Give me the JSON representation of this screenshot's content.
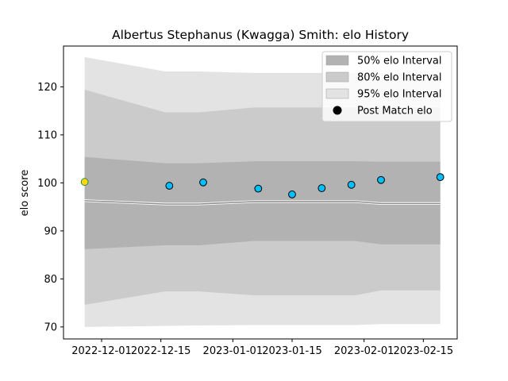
{
  "chart_data": {
    "type": "scatter",
    "title": "Albertus Stephanus (Kwagga) Smith: elo History",
    "xlabel": "",
    "ylabel": "elo score",
    "x_range": [
      "2022-11-22",
      "2023-02-23"
    ],
    "ylim": [
      67.5,
      128.5
    ],
    "x_ticks": [
      "2022-12-01",
      "2022-12-15",
      "2023-01-01",
      "2023-01-15",
      "2023-02-01",
      "2023-02-15"
    ],
    "y_ticks": [
      70,
      80,
      90,
      100,
      110,
      120
    ],
    "grid": false,
    "legend": {
      "placement": "top-right",
      "entries": [
        "50% elo Interval",
        "80% elo Interval",
        "95% elo Interval",
        "Post Match elo"
      ]
    },
    "bands": [
      {
        "name": "95% elo Interval",
        "color": "#e3e3e3",
        "x": [
          "2022-11-27",
          "2022-12-16",
          "2022-12-24",
          "2023-01-06",
          "2023-01-15",
          "2023-01-23",
          "2023-01-30",
          "2023-02-05",
          "2023-02-19"
        ],
        "upper": [
          126.2,
          123.2,
          123.2,
          122.9,
          122.9,
          122.9,
          122.9,
          122.9,
          122.9
        ],
        "lower": [
          70.0,
          70.2,
          70.3,
          70.4,
          70.4,
          70.4,
          70.4,
          70.6,
          70.6
        ]
      },
      {
        "name": "80% elo Interval",
        "color": "#cbcbcb",
        "x": [
          "2022-11-27",
          "2022-12-16",
          "2022-12-24",
          "2023-01-06",
          "2023-01-15",
          "2023-01-23",
          "2023-01-30",
          "2023-02-05",
          "2023-02-19"
        ],
        "upper": [
          119.4,
          114.7,
          114.7,
          115.7,
          115.7,
          115.7,
          115.7,
          115.7,
          115.7
        ],
        "lower": [
          74.6,
          77.4,
          77.4,
          76.6,
          76.6,
          76.6,
          76.6,
          77.6,
          77.6
        ]
      },
      {
        "name": "50% elo Interval",
        "color": "#b2b2b2",
        "x": [
          "2022-11-27",
          "2022-12-16",
          "2022-12-24",
          "2023-01-06",
          "2023-01-15",
          "2023-01-23",
          "2023-01-30",
          "2023-02-05",
          "2023-02-19"
        ],
        "upper": [
          105.4,
          104.1,
          104.1,
          104.5,
          104.5,
          104.5,
          104.5,
          104.4,
          104.4
        ],
        "lower": [
          86.2,
          87.0,
          87.0,
          87.9,
          87.9,
          87.9,
          87.9,
          87.2,
          87.2
        ]
      }
    ],
    "median_line": {
      "color": "#8c8c8c",
      "x": [
        "2022-11-27",
        "2022-12-16",
        "2022-12-24",
        "2023-01-06",
        "2023-01-15",
        "2023-01-23",
        "2023-01-30",
        "2023-02-05",
        "2023-02-19"
      ],
      "y": [
        96.3,
        95.6,
        95.6,
        96.1,
        96.1,
        96.1,
        96.1,
        95.7,
        95.7
      ]
    },
    "series": [
      {
        "name": "Post Match elo",
        "x": [
          "2022-11-27",
          "2022-12-17",
          "2022-12-25",
          "2023-01-07",
          "2023-01-15",
          "2023-01-22",
          "2023-01-29",
          "2023-02-05",
          "2023-02-19"
        ],
        "y": [
          100.2,
          99.4,
          100.1,
          98.8,
          97.6,
          98.9,
          99.6,
          100.6,
          101.2
        ],
        "colors": [
          "#ffd700",
          "#00bfff",
          "#00bfff",
          "#00bfff",
          "#00bfff",
          "#00bfff",
          "#00bfff",
          "#00bfff",
          "#00bfff"
        ],
        "edge_colors": [
          "#2e8b57",
          "#000000",
          "#000000",
          "#000000",
          "#000000",
          "#000000",
          "#000000",
          "#000000",
          "#000000"
        ]
      }
    ]
  }
}
